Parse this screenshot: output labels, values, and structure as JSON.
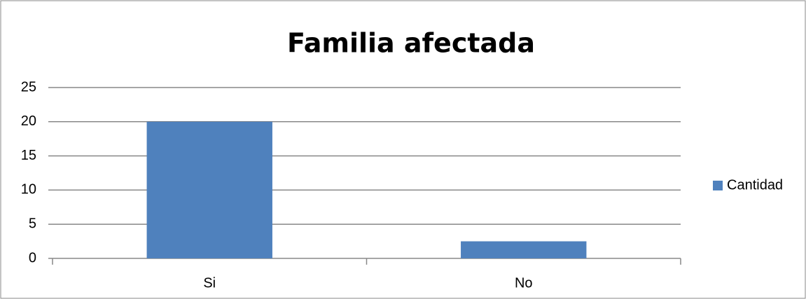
{
  "chart_data": {
    "type": "bar",
    "title": "Familia afectada",
    "categories": [
      "Si",
      "No"
    ],
    "series": [
      {
        "name": "Cantidad",
        "color": "#4f81bd",
        "values": [
          20,
          2.5
        ]
      }
    ],
    "ylim": [
      0,
      25
    ],
    "yticks": [
      0,
      5,
      10,
      15,
      20,
      25
    ],
    "grid": true,
    "legend": "right"
  }
}
